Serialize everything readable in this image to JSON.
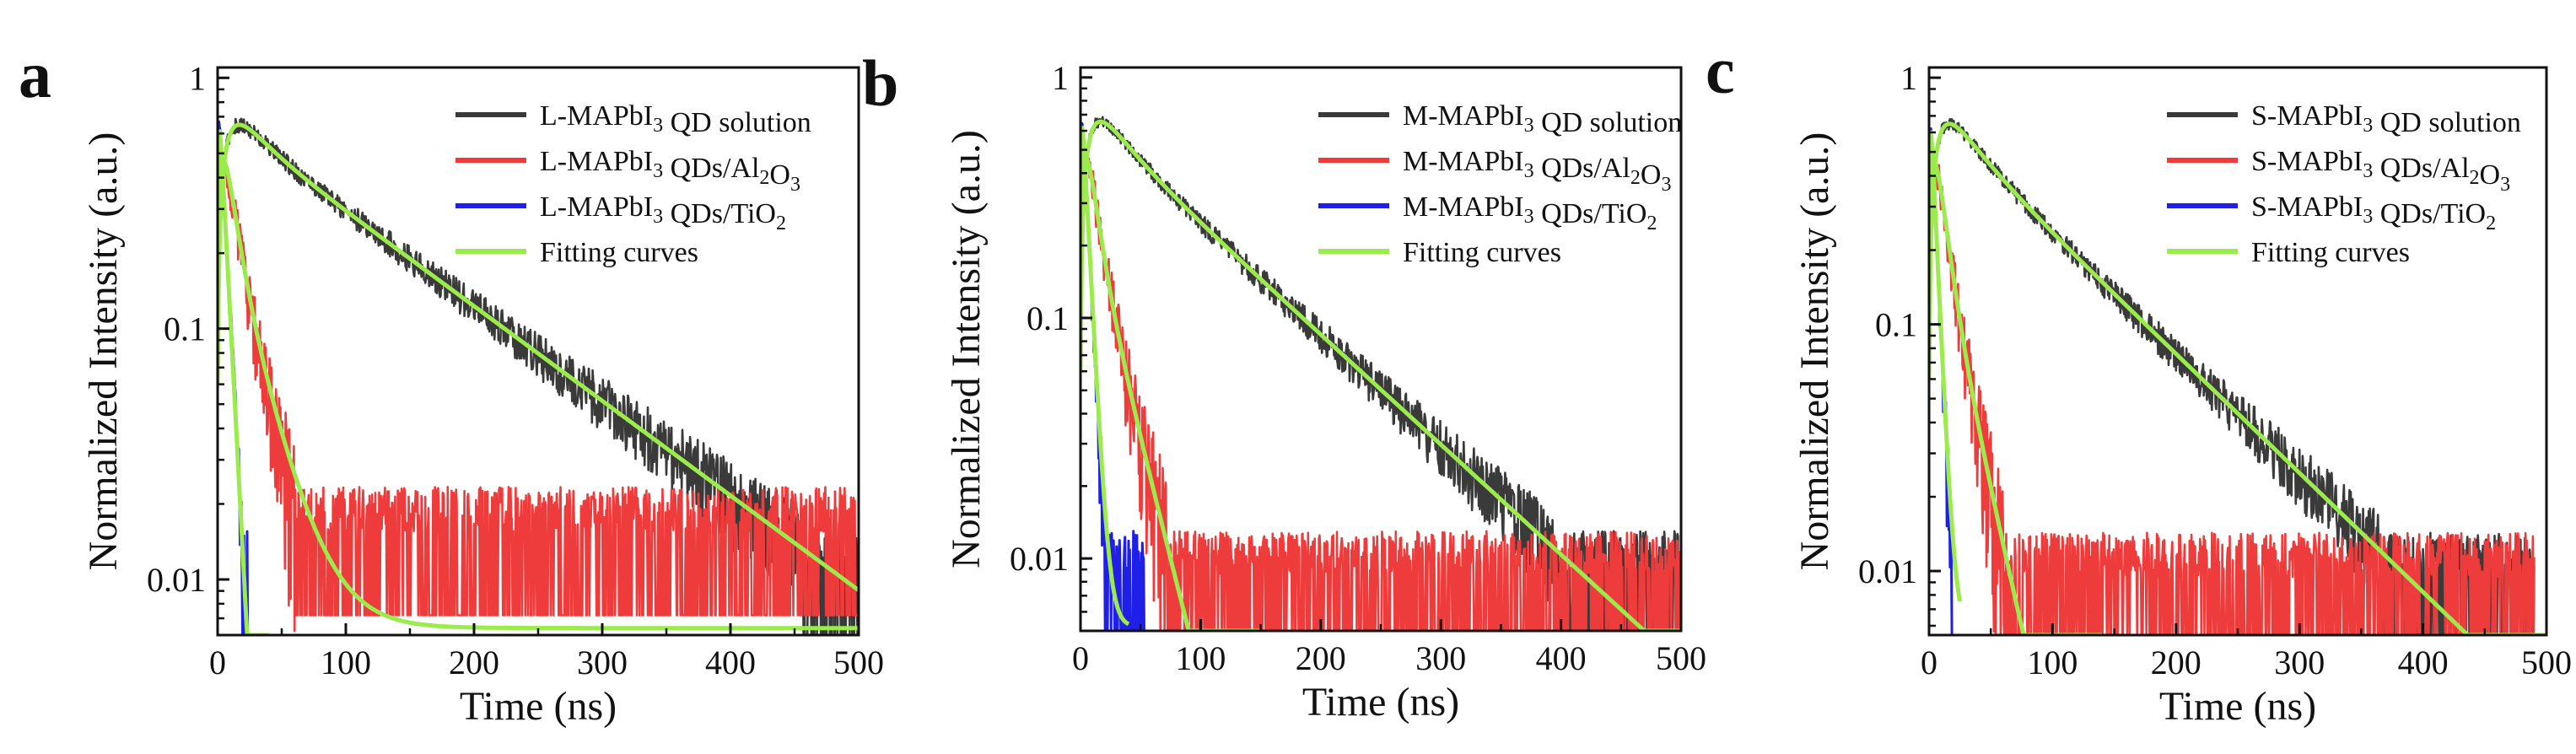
{
  "colors": {
    "solution": "#3a3a3a",
    "al2o3": "#ee3b3b",
    "tio2": "#1f1fe6",
    "fitting": "#9aeb4b",
    "axis": "#111111"
  },
  "chart_data": [
    {
      "type": "line",
      "panel_label": "a",
      "xlabel": "Time (ns)",
      "ylabel": "Normalized Intensity (a.u.)",
      "yscale": "log",
      "xlim": [
        0,
        500
      ],
      "ylim": [
        0.006,
        1.1
      ],
      "xticks": [
        0,
        100,
        200,
        300,
        400,
        500
      ],
      "xtick_labels": [
        "0",
        "100",
        "200",
        "300",
        "400",
        "500"
      ],
      "yticks": [
        0.01,
        0.1,
        1
      ],
      "ytick_labels": [
        "0.01",
        "0.1",
        "1"
      ],
      "legend": [
        {
          "prefix": "L-MAPbI",
          "sub1": "3",
          "mid": " QD solution",
          "sub2": "",
          "tail": "",
          "key": "solution"
        },
        {
          "prefix": "L-MAPbI",
          "sub1": "3",
          "mid": " QDs/Al",
          "sub2": "2",
          "tail": "O3",
          "key": "al2o3"
        },
        {
          "prefix": "L-MAPbI",
          "sub1": "3",
          "mid": " QDs/TiO",
          "sub2": "2",
          "tail": "",
          "key": "tio2"
        },
        {
          "prefix": "Fitting curves",
          "sub1": "",
          "mid": "",
          "sub2": "",
          "tail": "",
          "key": "fitting"
        }
      ],
      "series": [
        {
          "name": "L-MAPbI3 QD solution",
          "key": "solution",
          "decay": [
            {
              "a": 0.3,
              "tau": 20
            },
            {
              "a": 0.7,
              "tau": 115
            }
          ],
          "rise": 8,
          "tmax": 500,
          "noise_amp": 0.55,
          "floor": 0.006
        },
        {
          "name": "L-MAPbI3 QDs/Al2O3",
          "key": "al2o3",
          "decay": [
            {
              "a": 0.7,
              "tau": 8
            },
            {
              "a": 0.3,
              "tau": 22
            }
          ],
          "rise": 4,
          "tmax": 500,
          "noise_amp": 1.1,
          "floor": 0.009
        },
        {
          "name": "L-MAPbI3 QDs/TiO2",
          "key": "tio2",
          "decay": [
            {
              "a": 1.0,
              "tau": 4.5
            }
          ],
          "rise": 1,
          "tmax": 25,
          "noise_amp": 0.6,
          "floor": 0.006
        },
        {
          "name": "Fitting curves",
          "key": "fitting",
          "fits": [
            {
              "decay": [
                {
                  "a": 0.3,
                  "tau": 20
                },
                {
                  "a": 0.7,
                  "tau": 115
                }
              ],
              "rise": 8,
              "tmax": 500,
              "floor": 0.0
            },
            {
              "decay": [
                {
                  "a": 0.7,
                  "tau": 8
                },
                {
                  "a": 0.3,
                  "tau": 22
                }
              ],
              "rise": 4,
              "tmax": 500,
              "floor": 0.0064
            },
            {
              "decay": [
                {
                  "a": 1.0,
                  "tau": 4.5
                }
              ],
              "rise": 1,
              "tmax": 40,
              "floor": 0.0
            }
          ]
        }
      ]
    },
    {
      "type": "line",
      "panel_label": "b",
      "xlabel": "Time (ns)",
      "ylabel": "Normalized Intensity (a.u.)",
      "yscale": "log",
      "xlim": [
        0,
        500
      ],
      "ylim": [
        0.005,
        1.1
      ],
      "xticks": [
        0,
        100,
        200,
        300,
        400,
        500
      ],
      "xtick_labels": [
        "0",
        "100",
        "200",
        "300",
        "400",
        "500"
      ],
      "yticks": [
        0.01,
        0.1,
        1
      ],
      "ytick_labels": [
        "0.01",
        "0.1",
        "1"
      ],
      "legend": [
        {
          "prefix": "M-MAPbI",
          "sub1": "3",
          "mid": " QD solution",
          "sub2": "",
          "tail": "",
          "key": "solution"
        },
        {
          "prefix": "M-MAPbI",
          "sub1": "3",
          "mid": " QDs/Al",
          "sub2": "2",
          "tail": "O3",
          "key": "al2o3"
        },
        {
          "prefix": "M-MAPbI",
          "sub1": "3",
          "mid": " QDs/TiO",
          "sub2": "2",
          "tail": "",
          "key": "tio2"
        },
        {
          "prefix": "Fitting curves",
          "sub1": "",
          "mid": "",
          "sub2": "",
          "tail": "",
          "key": "fitting"
        }
      ],
      "series": [
        {
          "name": "M-MAPbI3 QD solution",
          "key": "solution",
          "decay": [
            {
              "a": 0.3,
              "tau": 25
            },
            {
              "a": 0.7,
              "tau": 95
            }
          ],
          "rise": 8,
          "tmax": 500,
          "noise_amp": 0.45,
          "floor": 0.005
        },
        {
          "name": "M-MAPbI3 QDs/Al2O3",
          "key": "al2o3",
          "decay": [
            {
              "a": 0.7,
              "tau": 8
            },
            {
              "a": 0.3,
              "tau": 22
            }
          ],
          "rise": 4,
          "tmax": 500,
          "noise_amp": 1.0,
          "floor": 0.005
        },
        {
          "name": "M-MAPbI3 QDs/TiO2",
          "key": "tio2",
          "decay": [
            {
              "a": 1.0,
              "tau": 4.5
            }
          ],
          "rise": 1,
          "tmax": 55,
          "noise_amp": 0.7,
          "floor": 0.005
        },
        {
          "name": "Fitting curves",
          "key": "fitting",
          "fits": [
            {
              "decay": [
                {
                  "a": 0.3,
                  "tau": 25
                },
                {
                  "a": 0.7,
                  "tau": 95
                }
              ],
              "rise": 8,
              "tmax": 500,
              "floor": 0.0
            },
            {
              "decay": [
                {
                  "a": 0.7,
                  "tau": 8
                },
                {
                  "a": 0.3,
                  "tau": 22
                }
              ],
              "rise": 4,
              "tmax": 150,
              "floor": 0.0
            },
            {
              "decay": [
                {
                  "a": 1.0,
                  "tau": 4.5
                }
              ],
              "rise": 1,
              "tmax": 40,
              "floor": 0.0052
            }
          ]
        }
      ]
    },
    {
      "type": "line",
      "panel_label": "c",
      "xlabel": "Time (ns)",
      "ylabel": "Normalized Intensity (a.u.)",
      "yscale": "log",
      "xlim": [
        0,
        500
      ],
      "ylim": [
        0.0055,
        1.1
      ],
      "xticks": [
        0,
        100,
        200,
        300,
        400,
        500
      ],
      "xtick_labels": [
        "0",
        "100",
        "200",
        "300",
        "400",
        "500"
      ],
      "yticks": [
        0.01,
        0.1,
        1
      ],
      "ytick_labels": [
        "0.01",
        "0.1",
        "1"
      ],
      "legend": [
        {
          "prefix": "S-MAPbI",
          "sub1": "3",
          "mid": " QD solution",
          "sub2": "",
          "tail": "",
          "key": "solution"
        },
        {
          "prefix": "S-MAPbI",
          "sub1": "3",
          "mid": " QDs/Al",
          "sub2": "2",
          "tail": "O3",
          "key": "al2o3"
        },
        {
          "prefix": "S-MAPbI",
          "sub1": "3",
          "mid": " QDs/TiO",
          "sub2": "2",
          "tail": "",
          "key": "tio2"
        },
        {
          "prefix": "Fitting curves",
          "sub1": "",
          "mid": "",
          "sub2": "",
          "tail": "",
          "key": "fitting"
        }
      ],
      "series": [
        {
          "name": "S-MAPbI3 QD solution",
          "key": "solution",
          "decay": [
            {
              "a": 0.3,
              "tau": 25
            },
            {
              "a": 0.7,
              "tau": 90
            }
          ],
          "rise": 8,
          "tmax": 490,
          "noise_amp": 0.45,
          "floor": 0.0055
        },
        {
          "name": "S-MAPbI3 QDs/Al2O3",
          "key": "al2o3",
          "decay": [
            {
              "a": 0.75,
              "tau": 8
            },
            {
              "a": 0.25,
              "tau": 20
            }
          ],
          "rise": 4,
          "tmax": 490,
          "noise_amp": 1.0,
          "floor": 0.0055
        },
        {
          "name": "S-MAPbI3 QDs/TiO2",
          "key": "tio2",
          "decay": [
            {
              "a": 1.0,
              "tau": 4
            }
          ],
          "rise": 1,
          "tmax": 20,
          "noise_amp": 0.8,
          "floor": 0.0055
        },
        {
          "name": "Fitting curves",
          "key": "fitting",
          "fits": [
            {
              "decay": [
                {
                  "a": 0.3,
                  "tau": 25
                },
                {
                  "a": 0.7,
                  "tau": 90
                }
              ],
              "rise": 8,
              "tmax": 500,
              "floor": 0.0
            },
            {
              "decay": [
                {
                  "a": 0.75,
                  "tau": 8
                },
                {
                  "a": 0.25,
                  "tau": 20
                }
              ],
              "rise": 4,
              "tmax": 140,
              "floor": 0.0
            },
            {
              "decay": [
                {
                  "a": 1.0,
                  "tau": 4
                }
              ],
              "rise": 1,
              "tmax": 25,
              "floor": 0.0056
            }
          ]
        }
      ]
    }
  ]
}
